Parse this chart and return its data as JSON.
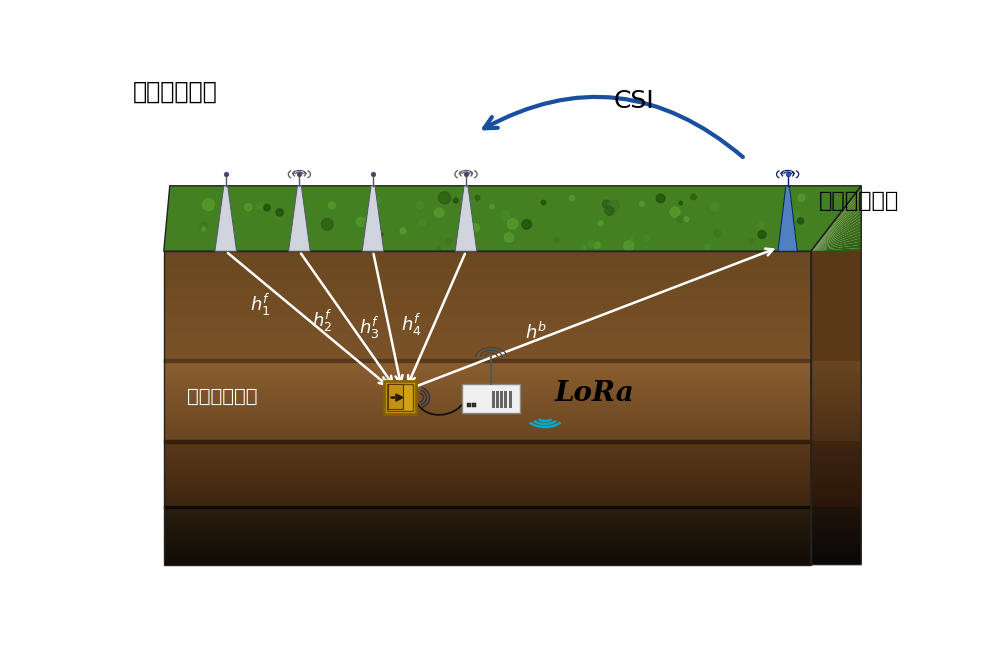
{
  "background_color": "#ffffff",
  "label_transmitter": "地上发射设备",
  "label_receiver": "地上接收设备",
  "label_backscatter": "背向散射模块",
  "label_csi": "CSI",
  "label_lora": "LoRa",
  "channel_labels": [
    "$h_1^f$",
    "$h_2^f$",
    "$h_3^f$",
    "$h_4^f$",
    "$h^b$"
  ],
  "soil_dark_brown": "#4a2e10",
  "soil_mid_brown": "#7a5228",
  "soil_tan": "#a07840",
  "soil_rock": "#1a1208",
  "grass_green": "#4a8020",
  "grass_dark": "#2d5e10",
  "arrow_color": "white",
  "csi_arrow_color": "#1a4fa0",
  "backscatter_gold": "#d4a017",
  "backscatter_gold2": "#b8860b",
  "antenna_gray": "#d0d4dc",
  "antenna_dark": "#888898",
  "receiver_blue": "#4a7cc0",
  "receiver_dark_blue": "#1a4a8a"
}
